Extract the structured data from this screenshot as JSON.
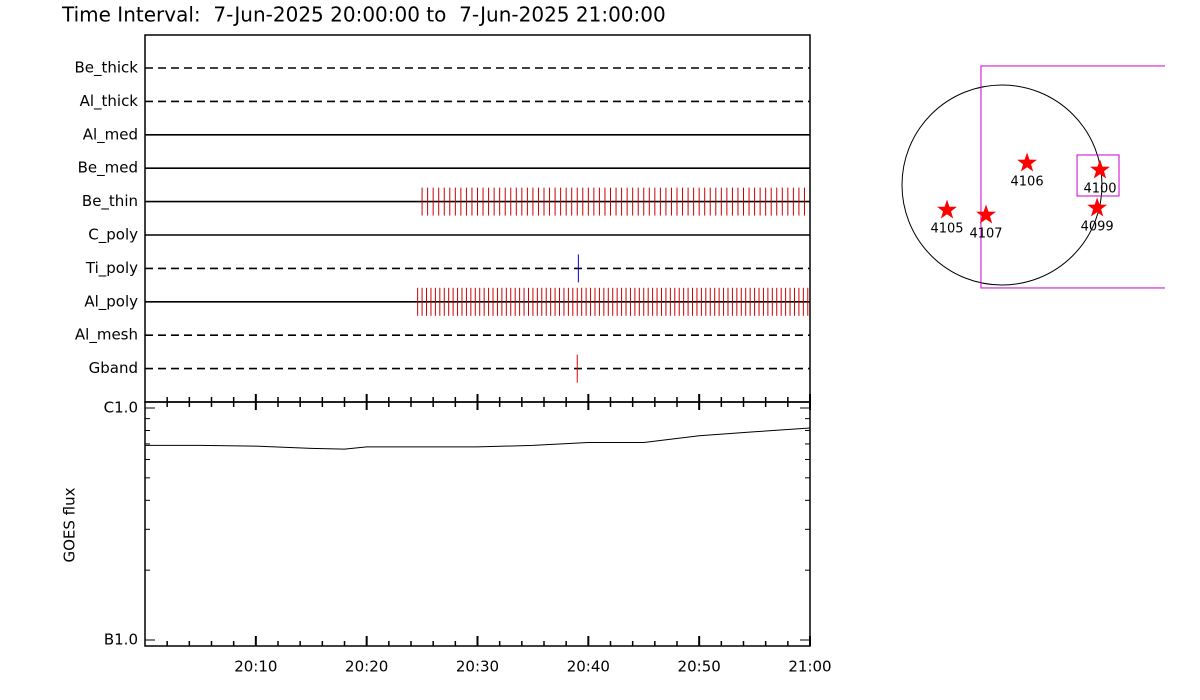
{
  "chart_data": [
    {
      "type": "timeline",
      "title": "Time Interval:  7-Jun-2025 20:00:00 to  7-Jun-2025 21:00:00",
      "xlim": [
        0,
        60
      ],
      "rows": [
        {
          "name": "Be_thick",
          "dashed": true,
          "events": []
        },
        {
          "name": "Al_thick",
          "dashed": true,
          "events": []
        },
        {
          "name": "Al_med",
          "dashed": false,
          "events": []
        },
        {
          "name": "Be_med",
          "dashed": false,
          "events": []
        },
        {
          "name": "Be_thin",
          "dashed": false,
          "color": "#cc0000",
          "events": [
            25,
            25.5,
            26,
            26.5,
            27,
            27.5,
            28,
            28.5,
            29,
            29.5,
            30,
            30.5,
            31,
            31.5,
            32,
            32.5,
            33,
            33.5,
            34,
            34.5,
            35,
            35.5,
            36,
            36.5,
            37,
            37.5,
            38,
            38.5,
            39,
            39.5,
            40,
            40.5,
            41,
            41.5,
            42,
            42.5,
            43,
            43.5,
            44,
            44.5,
            45,
            45.5,
            46,
            46.5,
            47,
            47.5,
            48,
            48.5,
            49,
            49.5,
            50,
            50.5,
            51,
            51.5,
            52,
            52.5,
            53,
            53.5,
            54,
            54.5,
            55,
            55.5,
            56,
            56.5,
            57,
            57.5,
            58,
            58.5,
            59,
            59.5
          ]
        },
        {
          "name": "C_poly",
          "dashed": false,
          "events": []
        },
        {
          "name": "Ti_poly",
          "dashed": true,
          "color": "#0000cc",
          "events": [
            39.1
          ]
        },
        {
          "name": "Al_poly",
          "dashed": false,
          "color": "#cc0000",
          "events": [
            24.6,
            25,
            25.4,
            25.8,
            26.2,
            26.6,
            27,
            27.4,
            27.8,
            28.2,
            28.6,
            29,
            29.4,
            29.8,
            30.2,
            30.6,
            31,
            31.4,
            31.8,
            32.2,
            32.6,
            33,
            33.4,
            33.8,
            34.2,
            34.6,
            35,
            35.4,
            35.8,
            36.2,
            36.6,
            37,
            37.4,
            37.8,
            38.2,
            38.6,
            39,
            39.4,
            39.8,
            40.2,
            40.6,
            41,
            41.4,
            41.8,
            42.2,
            42.6,
            43,
            43.4,
            43.8,
            44.2,
            44.6,
            45,
            45.4,
            45.8,
            46.2,
            46.6,
            47,
            47.4,
            47.8,
            48.2,
            48.6,
            49,
            49.4,
            49.8,
            50.2,
            50.6,
            51,
            51.4,
            51.8,
            52.2,
            52.6,
            53,
            53.4,
            53.8,
            54.2,
            54.6,
            55,
            55.4,
            55.8,
            56.2,
            56.6,
            57,
            57.4,
            57.8,
            58.2,
            58.6,
            59,
            59.4,
            59.8
          ]
        },
        {
          "name": "Al_mesh",
          "dashed": true,
          "events": []
        },
        {
          "name": "Gband",
          "dashed": true,
          "color": "#dd0000",
          "events": [
            39.0
          ]
        }
      ]
    },
    {
      "type": "line",
      "ylabel": "GOES flux",
      "log_scale": true,
      "color": "#000000",
      "xlim": [
        0,
        60
      ],
      "xticks": [
        {
          "value": 10,
          "label": "20:10"
        },
        {
          "value": 20,
          "label": "20:20"
        },
        {
          "value": 30,
          "label": "20:30"
        },
        {
          "value": 40,
          "label": "20:40"
        },
        {
          "value": 50,
          "label": "20:50"
        },
        {
          "value": 60,
          "label": "21:00"
        }
      ],
      "xminor": [
        2,
        4,
        6,
        8,
        12,
        14,
        16,
        18,
        22,
        24,
        26,
        28,
        32,
        34,
        36,
        38,
        42,
        44,
        46,
        48,
        52,
        54,
        56,
        58
      ],
      "ylim": [
        1e-07,
        1e-06
      ],
      "yticks": [
        {
          "value": 1e-07,
          "label": "B1.0"
        },
        {
          "value": 1e-06,
          "label": "C1.0"
        }
      ],
      "yminor": [
        2e-07,
        3e-07,
        4e-07,
        5e-07,
        6e-07,
        7e-07,
        8e-07,
        9e-07
      ],
      "x": [
        0,
        5,
        10,
        15,
        18,
        20,
        25,
        30,
        35,
        40,
        45,
        50,
        55,
        60
      ],
      "values": [
        6.9e-07,
        6.9e-07,
        6.85e-07,
        6.7e-07,
        6.65e-07,
        6.8e-07,
        6.8e-07,
        6.8e-07,
        6.9e-07,
        7.1e-07,
        7.1e-07,
        7.6e-07,
        7.9e-07,
        8.2e-07
      ]
    },
    {
      "type": "map",
      "disk_radius": 946,
      "disk_color": "#000000",
      "fov_color": "#cc00cc",
      "fov_x": [
        -199,
        1950
      ],
      "fov_y": [
        -974,
        1126
      ],
      "box_x": [
        710,
        1107
      ],
      "box_y": [
        -104,
        284
      ],
      "star_color": "#ff0000",
      "regions": [
        {
          "label": "4105",
          "x": -520,
          "y": -237
        },
        {
          "label": "4107",
          "x": -151,
          "y": -284
        },
        {
          "label": "4106",
          "x": 237,
          "y": 208
        },
        {
          "label": "4100",
          "x": 927,
          "y": 142
        },
        {
          "label": "4099",
          "x": 900,
          "y": -218
        }
      ]
    }
  ]
}
